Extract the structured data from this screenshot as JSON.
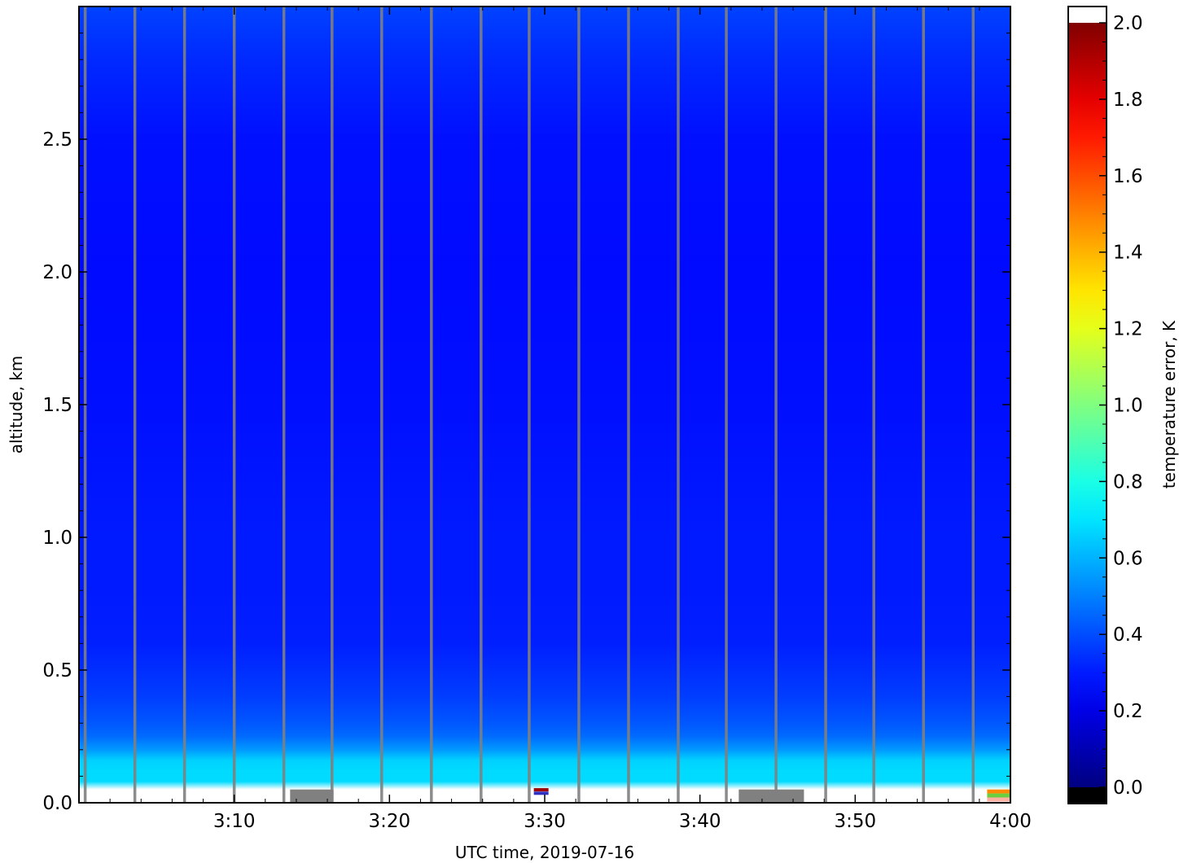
{
  "chart_data": {
    "type": "heatmap",
    "title": "",
    "xlabel": "UTC time,  2019-07-16",
    "ylabel": "altitude, km",
    "x_ticks": [
      "3:10",
      "3:20",
      "3:30",
      "3:40",
      "3:50",
      "4:00"
    ],
    "x_tick_minutes": [
      10,
      20,
      30,
      40,
      50,
      60
    ],
    "x_start_time": "3:00",
    "xlim_minutes": [
      0,
      60
    ],
    "y_ticks": [
      "0.0",
      "0.5",
      "1.0",
      "1.5",
      "2.0",
      "2.5"
    ],
    "y_tick_values": [
      0.0,
      0.5,
      1.0,
      1.5,
      2.0,
      2.5
    ],
    "ylim": [
      0,
      3.0
    ],
    "colorbar": {
      "label": "temperature error, K",
      "ticks": [
        "0.0",
        "0.2",
        "0.4",
        "0.6",
        "0.8",
        "1.0",
        "1.2",
        "1.4",
        "1.6",
        "1.8",
        "2.0"
      ],
      "tick_values": [
        0,
        0.2,
        0.4,
        0.6,
        0.8,
        1.0,
        1.2,
        1.4,
        1.6,
        1.8,
        2.0
      ],
      "range": [
        0,
        2.0
      ],
      "colormap": "jet",
      "under_color": "#000000",
      "over_color": "#ffffff"
    },
    "profile": {
      "altitude_km": [
        0.0,
        0.05,
        0.08,
        0.12,
        0.16,
        0.2,
        0.25,
        0.3,
        0.4,
        0.5,
        0.6,
        0.8,
        1.0,
        1.5,
        2.0,
        2.5,
        2.8,
        3.0
      ],
      "error_K": [
        2.05,
        2.05,
        0.68,
        0.68,
        0.66,
        0.55,
        0.46,
        0.42,
        0.37,
        0.34,
        0.31,
        0.3,
        0.3,
        0.28,
        0.27,
        0.28,
        0.33,
        0.38
      ]
    },
    "gap_minutes": [
      0.4,
      3.6,
      6.8,
      10.0,
      13.2,
      16.3,
      19.5,
      22.7,
      25.9,
      29.0,
      32.2,
      35.4,
      38.6,
      41.7,
      44.9,
      48.1,
      51.2,
      54.4,
      57.6
    ],
    "missing_blocks": [
      {
        "start_min": 13.6,
        "end_min": 16.4,
        "alt_max_km": 0.05
      },
      {
        "start_min": 42.5,
        "end_min": 46.7,
        "alt_max_km": 0.05
      }
    ],
    "gap_color": "#808080"
  }
}
